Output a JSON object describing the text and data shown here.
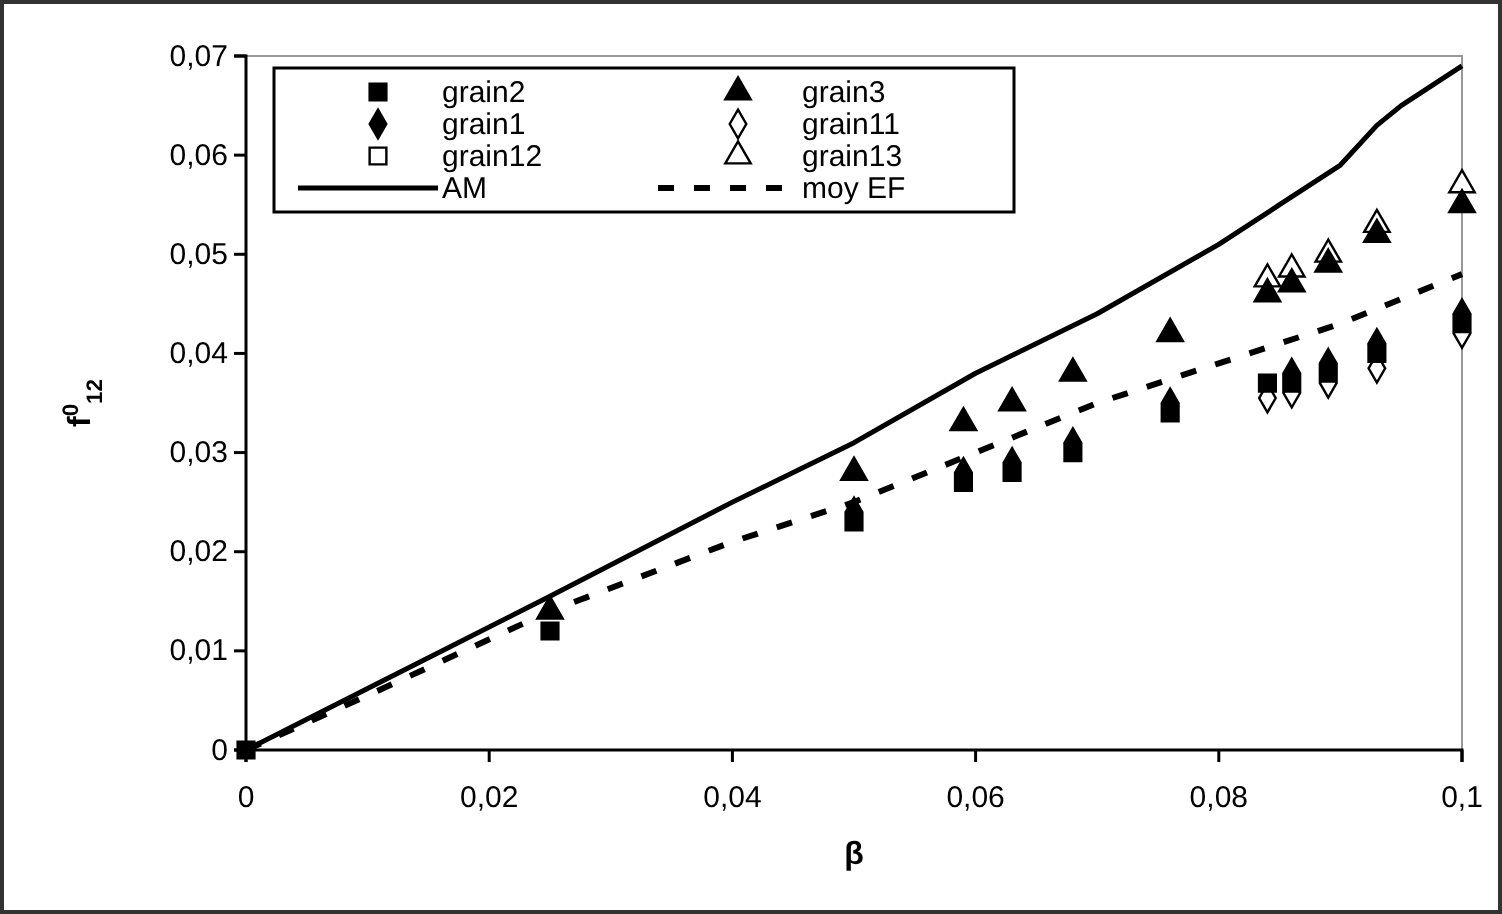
{
  "chart_data": {
    "type": "scatter",
    "xlabel": "β",
    "ylabel": "f$^{0}$$_{12}$",
    "x": [
      0,
      0.025,
      0.05,
      0.059,
      0.063,
      0.068,
      0.076,
      0.084,
      0.086,
      0.089,
      0.093,
      0.1
    ],
    "series": [
      {
        "name": "grain2",
        "color": "#000000",
        "marker": "square",
        "values": [
          0,
          0.012,
          0.023,
          0.027,
          0.028,
          0.03,
          0.034,
          0.037,
          0.037,
          0.038,
          0.04,
          0.043
        ]
      },
      {
        "name": "grain3",
        "color": "#000000",
        "marker": "triangle",
        "values": [
          null,
          0.014,
          0.028,
          0.033,
          0.035,
          0.038,
          0.042,
          0.046,
          0.047,
          0.049,
          0.052,
          0.055
        ]
      },
      {
        "name": "grain1",
        "color": "#000000",
        "marker": "diamond",
        "values": [
          null,
          null,
          0.024,
          0.028,
          0.029,
          0.031,
          0.035,
          null,
          0.038,
          0.039,
          0.041,
          0.044
        ]
      },
      {
        "name": "grain11",
        "color": "#ffffff",
        "marker": "diamond",
        "values": [
          null,
          null,
          null,
          null,
          null,
          null,
          null,
          0.0355,
          0.036,
          0.037,
          0.0385,
          0.042
        ]
      },
      {
        "name": "grain12",
        "color": "#ffffff",
        "marker": "square",
        "values": [
          null,
          null,
          null,
          null,
          null,
          null,
          null,
          null,
          null,
          null,
          null,
          null
        ]
      },
      {
        "name": "grain13",
        "color": "#ffffff",
        "marker": "triangle",
        "values": [
          null,
          null,
          null,
          null,
          null,
          null,
          null,
          0.0475,
          0.0485,
          0.05,
          0.053,
          0.057
        ]
      },
      {
        "name": "AM",
        "type": "line",
        "color": "#000000",
        "marker": "none",
        "line_style": "solid",
        "x": [
          0,
          0.01,
          0.025,
          0.04,
          0.05,
          0.06,
          0.07,
          0.08,
          0.085,
          0.09,
          0.093,
          0.095,
          0.1
        ],
        "values": [
          0,
          0.0062,
          0.0155,
          0.025,
          0.031,
          0.038,
          0.044,
          0.051,
          0.055,
          0.059,
          0.063,
          0.065,
          0.069
        ]
      },
      {
        "name": "moy EF",
        "type": "line",
        "color": "#000000",
        "marker": "none",
        "line_style": "dashed",
        "x": [
          0,
          0.01,
          0.025,
          0.04,
          0.05,
          0.06,
          0.07,
          0.08,
          0.09,
          0.1
        ],
        "values": [
          0,
          0.0055,
          0.014,
          0.021,
          0.025,
          0.03,
          0.035,
          0.039,
          0.043,
          0.048
        ]
      }
    ],
    "xlim": [
      0,
      0.1
    ],
    "xticks": [
      0,
      {
        "value": 0.02,
        "label": "0,02"
      },
      {
        "value": 0.04,
        "label": "0,04"
      },
      {
        "value": 0.06,
        "label": "0,06"
      },
      {
        "value": 0.08,
        "label": "0,08"
      },
      {
        "value": 0.1,
        "label": "0,1"
      }
    ],
    "ylim": [
      0,
      0.07
    ],
    "yticks": [
      0,
      {
        "value": 0.01,
        "label": "0,01"
      },
      {
        "value": 0.02,
        "label": "0,02"
      },
      {
        "value": 0.03,
        "label": "0,03"
      },
      {
        "value": 0.04,
        "label": "0,04"
      },
      {
        "value": 0.05,
        "label": "0,05"
      },
      {
        "value": 0.06,
        "label": "0,06"
      },
      {
        "value": 0.07,
        "label": "0,07"
      }
    ],
    "grid": false,
    "legend": "top left"
  }
}
